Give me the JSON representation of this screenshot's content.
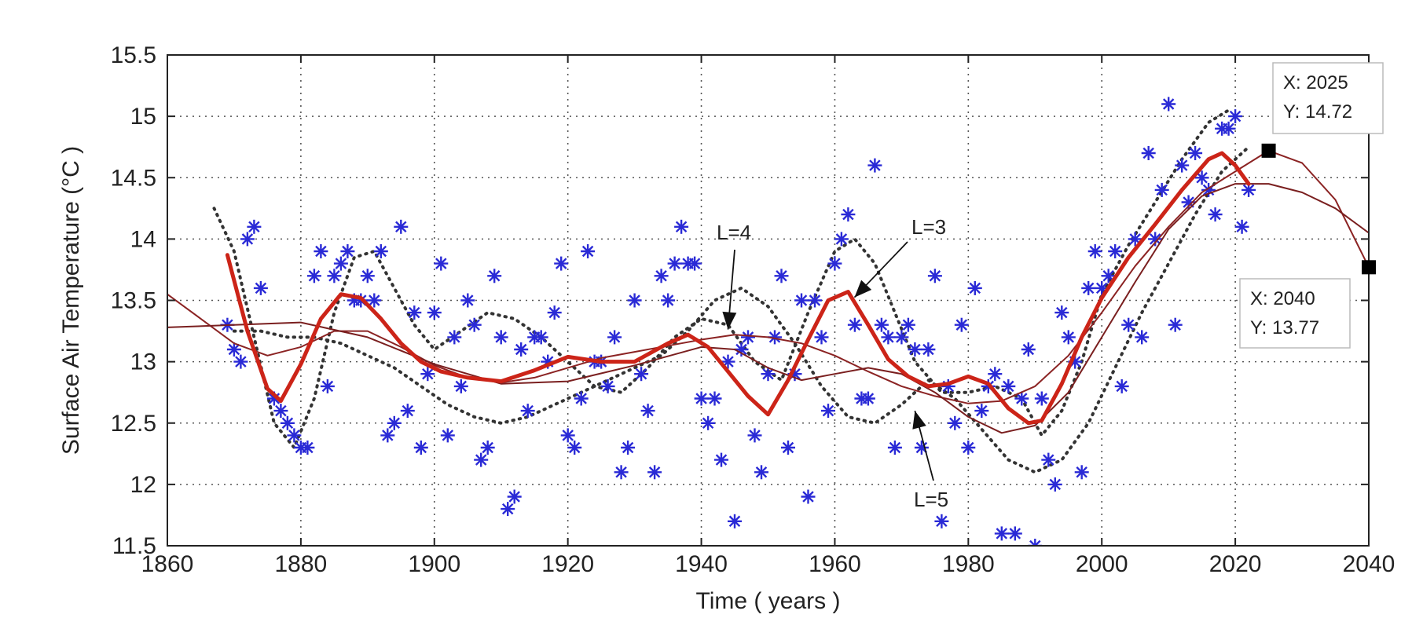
{
  "chart_data": {
    "type": "scatter",
    "xlabel": "Time ( years )",
    "ylabel": "Surface Air Temperature (°C )",
    "xlim": [
      1860,
      2040
    ],
    "ylim": [
      11.5,
      15.5
    ],
    "xticks": [
      1860,
      1880,
      1900,
      1920,
      1940,
      1960,
      1980,
      2000,
      2020,
      2040
    ],
    "yticks": [
      11.5,
      12,
      12.5,
      13,
      13.5,
      14,
      14.5,
      15,
      15.5
    ],
    "xtick_labels": [
      "1860",
      "1880",
      "1900",
      "1920",
      "1940",
      "1960",
      "1980",
      "2000",
      "2020",
      "2040"
    ],
    "ytick_labels": [
      "11.5",
      "12",
      "12.5",
      "13",
      "13.5",
      "14",
      "14.5",
      "15",
      "15.5"
    ],
    "grid": true,
    "colors": {
      "observations": "#2a2ad6",
      "l3_fit": "#cc2418",
      "l4_fit": "#7a1f1f",
      "l5_fit": "#8b2323",
      "dotted_band": "#333333",
      "datatip_marker": "#000000"
    },
    "series": [
      {
        "style": "asterisk markers",
        "x": [
          1869,
          1870,
          1871,
          1872,
          1873,
          1874,
          1876,
          1877,
          1878,
          1879,
          1880,
          1881,
          1882,
          1883,
          1884,
          1885,
          1886,
          1887,
          1888,
          1889,
          1890,
          1891,
          1892,
          1893,
          1894,
          1895,
          1896,
          1897,
          1898,
          1899,
          1900,
          1901,
          1902,
          1903,
          1904,
          1905,
          1906,
          1907,
          1908,
          1909,
          1910,
          1911,
          1912,
          1913,
          1914,
          1915,
          1916,
          1917,
          1918,
          1919,
          1920,
          1921,
          1922,
          1923,
          1924,
          1925,
          1926,
          1927,
          1928,
          1929,
          1930,
          1931,
          1932,
          1933,
          1934,
          1935,
          1936,
          1937,
          1938,
          1939,
          1940,
          1941,
          1942,
          1943,
          1944,
          1945,
          1946,
          1947,
          1948,
          1949,
          1950,
          1951,
          1952,
          1953,
          1954,
          1955,
          1956,
          1957,
          1958,
          1959,
          1960,
          1961,
          1962,
          1963,
          1964,
          1965,
          1966,
          1967,
          1968,
          1969,
          1970,
          1971,
          1972,
          1973,
          1974,
          1975,
          1976,
          1977,
          1978,
          1979,
          1980,
          1981,
          1982,
          1983,
          1984,
          1985,
          1986,
          1987,
          1988,
          1989,
          1990,
          1991,
          1992,
          1993,
          1994,
          1995,
          1996,
          1997,
          1998,
          1999,
          2000,
          2001,
          2002,
          2003,
          2004,
          2005,
          2006,
          2007,
          2008,
          2009,
          2010,
          2011,
          2012,
          2013,
          2014,
          2015,
          2016,
          2017,
          2018,
          2019,
          2020,
          2021,
          2022
        ],
        "y": [
          13.3,
          13.1,
          13.0,
          14.0,
          14.1,
          13.6,
          12.7,
          12.6,
          12.5,
          12.4,
          12.3,
          12.3,
          13.7,
          13.9,
          12.8,
          13.7,
          13.8,
          13.9,
          13.5,
          13.5,
          13.7,
          13.5,
          13.9,
          12.4,
          12.5,
          14.1,
          12.6,
          13.4,
          12.3,
          12.9,
          13.4,
          13.8,
          12.4,
          13.2,
          12.8,
          13.5,
          13.3,
          12.2,
          12.3,
          13.7,
          13.2,
          11.8,
          11.9,
          13.1,
          12.6,
          13.2,
          13.2,
          13.0,
          13.4,
          13.8,
          12.4,
          12.3,
          12.7,
          13.9,
          13.0,
          13.0,
          12.8,
          13.2,
          12.1,
          12.3,
          13.5,
          12.9,
          12.6,
          12.1,
          13.7,
          13.5,
          13.8,
          14.1,
          13.8,
          13.8,
          12.7,
          12.5,
          12.7,
          12.2,
          13.0,
          11.7,
          13.1,
          13.2,
          12.4,
          12.1,
          12.9,
          13.2,
          13.7,
          12.3,
          12.9,
          13.5,
          11.9,
          13.5,
          13.2,
          12.6,
          13.8,
          14.0,
          14.2,
          13.3,
          12.7,
          12.7,
          14.6,
          13.3,
          13.2,
          12.3,
          13.2,
          13.3,
          13.1,
          12.3,
          13.1,
          13.7,
          11.7,
          12.8,
          12.5,
          13.3,
          12.3,
          13.6,
          12.6,
          12.8,
          12.9,
          11.6,
          12.8,
          11.6,
          12.7,
          13.1,
          11.5,
          12.7,
          12.2,
          12.0,
          13.4,
          13.2,
          13.0,
          12.1,
          13.6,
          13.9,
          13.6,
          13.7,
          13.9,
          12.8,
          13.3,
          14.0,
          13.2,
          14.7,
          14.0,
          14.4,
          15.1,
          13.3,
          14.6,
          14.3,
          14.7,
          14.5,
          14.4,
          14.2,
          14.9,
          14.9,
          15.0,
          14.1,
          14.4
        ]
      },
      {
        "style": "thick solid line",
        "x": [
          1869,
          1872,
          1875,
          1877,
          1880,
          1883,
          1886,
          1889,
          1892,
          1895,
          1898,
          1901,
          1905,
          1910,
          1915,
          1920,
          1925,
          1930,
          1935,
          1938,
          1941,
          1944,
          1947,
          1950,
          1953,
          1956,
          1959,
          1962,
          1965,
          1968,
          1971,
          1974,
          1977,
          1980,
          1983,
          1986,
          1989,
          1991,
          1994,
          1997,
          2000,
          2004,
          2008,
          2012,
          2016,
          2018,
          2020,
          2022
        ],
        "y": [
          13.87,
          13.25,
          12.78,
          12.68,
          12.98,
          13.35,
          13.55,
          13.52,
          13.35,
          13.15,
          13.0,
          12.92,
          12.87,
          12.84,
          12.93,
          13.04,
          13.0,
          13.0,
          13.15,
          13.22,
          13.12,
          12.92,
          12.72,
          12.57,
          12.85,
          13.18,
          13.5,
          13.57,
          13.3,
          13.02,
          12.88,
          12.8,
          12.82,
          12.88,
          12.82,
          12.62,
          12.5,
          12.52,
          12.82,
          13.2,
          13.52,
          13.85,
          14.12,
          14.4,
          14.65,
          14.7,
          14.6,
          14.45
        ]
      },
      {
        "style": "thin solid line",
        "x": [
          1860,
          1865,
          1870,
          1875,
          1880,
          1885,
          1890,
          1895,
          1900,
          1905,
          1910,
          1915,
          1920,
          1925,
          1930,
          1935,
          1940,
          1945,
          1950,
          1955,
          1960,
          1965,
          1970,
          1975,
          1980,
          1985,
          1990,
          1995,
          2000,
          2005,
          2010,
          2015,
          2020,
          2025,
          2030,
          2035,
          2040
        ],
        "y": [
          13.55,
          13.35,
          13.15,
          13.05,
          13.12,
          13.25,
          13.25,
          13.12,
          12.97,
          12.87,
          12.83,
          12.87,
          12.95,
          13.03,
          13.08,
          13.13,
          13.18,
          13.22,
          13.2,
          13.15,
          13.05,
          12.92,
          12.8,
          12.72,
          12.66,
          12.68,
          12.8,
          13.05,
          13.4,
          13.78,
          14.1,
          14.38,
          14.55,
          14.72,
          14.62,
          14.32,
          13.77
        ]
      },
      {
        "style": "thin solid line",
        "x": [
          1860,
          1870,
          1880,
          1890,
          1900,
          1910,
          1920,
          1930,
          1940,
          1945,
          1950,
          1955,
          1960,
          1965,
          1970,
          1975,
          1980,
          1985,
          1990,
          1995,
          2000,
          2005,
          2010,
          2015,
          2020,
          2025,
          2030,
          2035,
          2040
        ],
        "y": [
          13.28,
          13.3,
          13.32,
          13.2,
          12.98,
          12.82,
          12.84,
          12.97,
          13.12,
          13.1,
          12.95,
          12.85,
          12.9,
          12.95,
          12.9,
          12.75,
          12.55,
          12.42,
          12.48,
          12.75,
          13.2,
          13.65,
          14.08,
          14.35,
          14.45,
          14.45,
          14.38,
          14.25,
          14.05
        ]
      },
      {
        "style": "dotted line",
        "x": [
          1867,
          1870,
          1873,
          1876,
          1879,
          1882,
          1885,
          1888,
          1891,
          1894,
          1897,
          1900,
          1904,
          1908,
          1912,
          1916,
          1920,
          1924,
          1928,
          1932,
          1936,
          1940,
          1944,
          1948,
          1952,
          1956,
          1960,
          1963,
          1966,
          1969,
          1972,
          1976,
          1980,
          1984,
          1988,
          1991,
          1994,
          1997,
          2000,
          2004,
          2008,
          2012,
          2016,
          2019
        ],
        "y": [
          14.25,
          13.9,
          13.2,
          12.5,
          12.3,
          12.7,
          13.4,
          13.85,
          13.9,
          13.6,
          13.3,
          13.1,
          13.25,
          13.4,
          13.35,
          13.2,
          13.0,
          12.8,
          12.75,
          12.95,
          13.2,
          13.35,
          13.3,
          13.0,
          12.85,
          13.4,
          13.9,
          14.0,
          13.8,
          13.4,
          13.0,
          12.75,
          12.75,
          12.8,
          12.7,
          12.4,
          12.6,
          13.0,
          13.55,
          13.95,
          14.3,
          14.65,
          14.95,
          15.05
        ]
      },
      {
        "style": "dotted line",
        "x": [
          1870,
          1874,
          1878,
          1882,
          1886,
          1890,
          1894,
          1898,
          1902,
          1906,
          1910,
          1914,
          1918,
          1922,
          1926,
          1930,
          1934,
          1938,
          1942,
          1946,
          1950,
          1954,
          1958,
          1962,
          1966,
          1970,
          1974,
          1978,
          1982,
          1986,
          1990,
          1994,
          1998,
          2002,
          2006,
          2010,
          2014,
          2018,
          2022
        ],
        "y": [
          13.25,
          13.25,
          13.2,
          13.2,
          13.15,
          13.05,
          12.95,
          12.8,
          12.65,
          12.55,
          12.5,
          12.55,
          12.65,
          12.75,
          12.85,
          12.95,
          13.05,
          13.25,
          13.5,
          13.6,
          13.45,
          13.15,
          12.8,
          12.55,
          12.5,
          12.65,
          12.85,
          12.7,
          12.45,
          12.2,
          12.1,
          12.2,
          12.5,
          12.95,
          13.4,
          13.8,
          14.2,
          14.55,
          14.75
        ]
      }
    ],
    "annotations": [
      {
        "text": "L=4",
        "x": 1944,
        "y": 13.25
      },
      {
        "text": "L=3",
        "x": 1962,
        "y": 13.55
      },
      {
        "text": "L=5",
        "x": 1972,
        "y": 12.6
      }
    ],
    "datatips": [
      {
        "label_x": "X: 2025",
        "label_y": "Y: 14.72",
        "x": 2025,
        "y": 14.72
      },
      {
        "label_x": "X: 2040",
        "label_y": "Y: 13.77",
        "x": 2040,
        "y": 13.77
      }
    ]
  }
}
